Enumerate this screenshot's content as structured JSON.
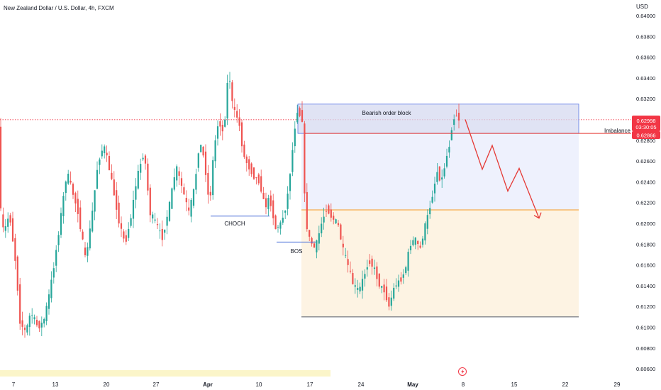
{
  "header": {
    "title": "New Zealand Dollar / U.S. Dollar, 4h, FXCM"
  },
  "axis": {
    "currency": "USD"
  },
  "price_badges": {
    "current": "0.62998",
    "countdown": "03:30:05",
    "imbalance_price": "0.62866"
  },
  "annotations": {
    "order_block": "Bearish order block",
    "imbalance": "Imbalance",
    "choch": "CHOCH",
    "bos": "BOS"
  },
  "icons": {
    "flash": "lightning-icon"
  },
  "colors": {
    "up": "#26a69a",
    "down": "#ef5350",
    "order_block_fill": "#d6daf0",
    "order_block_border": "#5b76e6",
    "zone_blue": "#eef1fd",
    "zone_orange": "#fdf3e3",
    "orange_line": "#f59a23",
    "imbalance_line": "#e53935",
    "struct_line": "#4a6fd8",
    "projection": "#e53935",
    "event_bar": "#fbf5c9"
  },
  "chart_data": {
    "type": "candlestick",
    "title": "New Zealand Dollar / U.S. Dollar, 4h, FXCM",
    "xlabel": "",
    "ylabel": "USD",
    "ylim": [
      0.6059,
      0.6415
    ],
    "x_ticks": [
      "7",
      "13",
      "20",
      "27",
      "Apr",
      "10",
      "17",
      "24",
      "May",
      "8",
      "15",
      "22",
      "29"
    ],
    "y_ticks": [
      "0.64000",
      "0.63800",
      "0.63600",
      "0.63400",
      "0.63200",
      "0.62800",
      "0.62600",
      "0.62400",
      "0.62200",
      "0.62000",
      "0.61800",
      "0.61600",
      "0.61400",
      "0.61200",
      "0.61000",
      "0.60800",
      "0.60600"
    ],
    "price_path": [
      [
        0,
        0.6225
      ],
      [
        7,
        0.619
      ],
      [
        15,
        0.621
      ],
      [
        24,
        0.616
      ],
      [
        30,
        0.6105
      ],
      [
        38,
        0.6095
      ],
      [
        45,
        0.6115
      ],
      [
        55,
        0.61
      ],
      [
        63,
        0.6105
      ],
      [
        72,
        0.6135
      ],
      [
        80,
        0.617
      ],
      [
        88,
        0.621
      ],
      [
        96,
        0.625
      ],
      [
        104,
        0.623
      ],
      [
        112,
        0.621
      ],
      [
        122,
        0.6165
      ],
      [
        130,
        0.62
      ],
      [
        140,
        0.626
      ],
      [
        148,
        0.6275
      ],
      [
        155,
        0.6255
      ],
      [
        162,
        0.623
      ],
      [
        170,
        0.62
      ],
      [
        178,
        0.618
      ],
      [
        186,
        0.6205
      ],
      [
        195,
        0.6245
      ],
      [
        205,
        0.627
      ],
      [
        213,
        0.621
      ],
      [
        222,
        0.62
      ],
      [
        230,
        0.6185
      ],
      [
        240,
        0.6215
      ],
      [
        250,
        0.6255
      ],
      [
        260,
        0.623
      ],
      [
        268,
        0.621
      ],
      [
        276,
        0.6235
      ],
      [
        283,
        0.628
      ],
      [
        290,
        0.626
      ],
      [
        297,
        0.6215
      ],
      [
        303,
        0.627
      ],
      [
        310,
        0.63
      ],
      [
        317,
        0.6285
      ],
      [
        324,
        0.635
      ],
      [
        330,
        0.631
      ],
      [
        338,
        0.63
      ],
      [
        345,
        0.6265
      ],
      [
        352,
        0.6255
      ],
      [
        360,
        0.6245
      ],
      [
        368,
        0.624
      ],
      [
        375,
        0.6215
      ],
      [
        382,
        0.6225
      ],
      [
        390,
        0.6195
      ],
      [
        398,
        0.62
      ],
      [
        406,
        0.622
      ],
      [
        414,
        0.627
      ],
      [
        420,
        0.631
      ],
      [
        428,
        0.63
      ],
      [
        432,
        0.6205
      ],
      [
        438,
        0.6185
      ],
      [
        446,
        0.6175
      ],
      [
        455,
        0.62
      ],
      [
        462,
        0.6215
      ],
      [
        470,
        0.6205
      ],
      [
        478,
        0.62
      ],
      [
        485,
        0.6175
      ],
      [
        492,
        0.616
      ],
      [
        500,
        0.614
      ],
      [
        508,
        0.6135
      ],
      [
        515,
        0.615
      ],
      [
        522,
        0.6165
      ],
      [
        530,
        0.6155
      ],
      [
        537,
        0.614
      ],
      [
        544,
        0.6135
      ],
      [
        550,
        0.612
      ],
      [
        558,
        0.614
      ],
      [
        566,
        0.6145
      ],
      [
        573,
        0.6155
      ],
      [
        580,
        0.618
      ],
      [
        587,
        0.6185
      ],
      [
        594,
        0.6175
      ],
      [
        600,
        0.6195
      ],
      [
        606,
        0.621
      ],
      [
        612,
        0.623
      ],
      [
        618,
        0.625
      ],
      [
        624,
        0.624
      ],
      [
        630,
        0.626
      ],
      [
        635,
        0.6275
      ],
      [
        640,
        0.63
      ],
      [
        646,
        0.6305
      ],
      [
        650,
        0.6298
      ]
    ],
    "markers": {
      "choch_level": 0.6207,
      "bos_level": 0.6182
    },
    "zones": {
      "order_block": [
        0.62866,
        0.63148
      ],
      "blue_zone": [
        0.6213,
        0.62866
      ],
      "orange_zone": [
        0.611,
        0.6213
      ],
      "orange_line": 0.6213,
      "zone_bottom": 0.611
    },
    "current_price": 0.62998,
    "imbalance_level": 0.62866,
    "projection": [
      [
        0.63,
        0.6252
      ],
      [
        0.6275,
        0.6231
      ],
      [
        0.6253,
        0.6205
      ]
    ]
  }
}
